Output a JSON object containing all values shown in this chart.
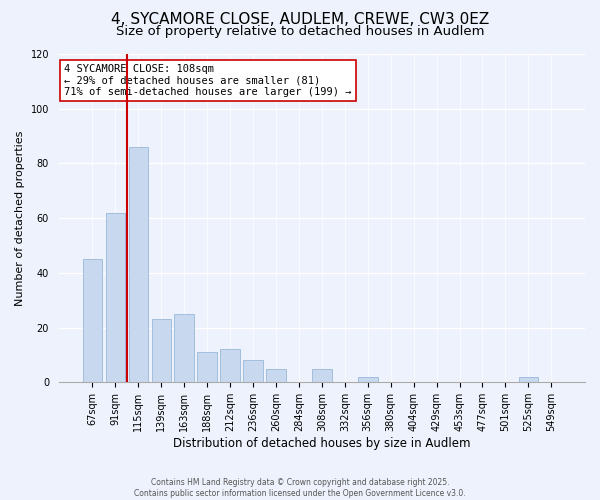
{
  "title": "4, SYCAMORE CLOSE, AUDLEM, CREWE, CW3 0EZ",
  "subtitle": "Size of property relative to detached houses in Audlem",
  "xlabel": "Distribution of detached houses by size in Audlem",
  "ylabel": "Number of detached properties",
  "bar_labels": [
    "67sqm",
    "91sqm",
    "115sqm",
    "139sqm",
    "163sqm",
    "188sqm",
    "212sqm",
    "236sqm",
    "260sqm",
    "284sqm",
    "308sqm",
    "332sqm",
    "356sqm",
    "380sqm",
    "404sqm",
    "429sqm",
    "453sqm",
    "477sqm",
    "501sqm",
    "525sqm",
    "549sqm"
  ],
  "bar_values": [
    45,
    62,
    86,
    23,
    25,
    11,
    12,
    8,
    5,
    0,
    5,
    0,
    2,
    0,
    0,
    0,
    0,
    0,
    0,
    2,
    0
  ],
  "bar_color": "#c8d8ee",
  "bar_edge_color": "#9ab8d8",
  "vline_x": 1.5,
  "vline_color": "#cc0000",
  "annotation_text": "4 SYCAMORE CLOSE: 108sqm\n← 29% of detached houses are smaller (81)\n71% of semi-detached houses are larger (199) →",
  "annotation_box_color": "#ffffff",
  "annotation_box_edge_color": "#cc0000",
  "ylim": [
    0,
    120
  ],
  "yticks": [
    0,
    20,
    40,
    60,
    80,
    100,
    120
  ],
  "background_color": "#eef2fc",
  "grid_color": "#ffffff",
  "footer_text": "Contains HM Land Registry data © Crown copyright and database right 2025.\nContains public sector information licensed under the Open Government Licence v3.0.",
  "title_fontsize": 11,
  "subtitle_fontsize": 9.5,
  "ylabel_fontsize": 8,
  "xlabel_fontsize": 8.5,
  "tick_fontsize": 7,
  "annot_fontsize": 7.5,
  "footer_fontsize": 5.5
}
